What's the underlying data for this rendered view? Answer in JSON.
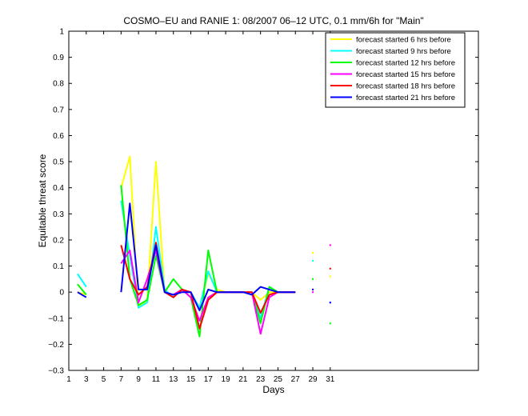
{
  "chart_data": {
    "type": "line",
    "title": "COSMO–EU and RANIE 1: 08/2007 06–12 UTC, 0.1 mm/6h for \"Main\"",
    "xlabel": "Days",
    "ylabel": "Equitable threat score",
    "xlim": [
      1,
      48
    ],
    "ylim": [
      -0.3,
      1
    ],
    "xticks": [
      1,
      3,
      5,
      7,
      9,
      11,
      13,
      15,
      17,
      19,
      21,
      23,
      25,
      27,
      29,
      31
    ],
    "yticks": [
      -0.3,
      -0.2,
      -0.1,
      0,
      0.1,
      0.2,
      0.3,
      0.4,
      0.5,
      0.6,
      0.7,
      0.8,
      0.9,
      1
    ],
    "ytick_labels": [
      "−0.3",
      "−0.2",
      "−0.1",
      "0",
      "0.1",
      "0.2",
      "0.3",
      "0.4",
      "0.5",
      "0.6",
      "0.7",
      "0.8",
      "0.9",
      "1"
    ],
    "legend_position": "top-right",
    "grid": false,
    "x": [
      1,
      2,
      3,
      4,
      5,
      6,
      7,
      8,
      9,
      10,
      11,
      12,
      13,
      14,
      15,
      16,
      17,
      18,
      19,
      20,
      21,
      22,
      23,
      24,
      25,
      26,
      27,
      28,
      29,
      30,
      31
    ],
    "series": [
      {
        "name": "forecast started 6 hrs before",
        "color": "#ffff00",
        "values": [
          null,
          0.0,
          -0.01,
          null,
          null,
          null,
          0.4,
          0.52,
          -0.06,
          -0.03,
          0.5,
          0.0,
          -0.01,
          0.01,
          0.0,
          -0.06,
          0.07,
          0.01,
          0.0,
          0.0,
          0.0,
          0.0,
          -0.03,
          0.0,
          0.0,
          0.0,
          0.0,
          null,
          0.15,
          null,
          0.06
        ]
      },
      {
        "name": "forecast started 9 hrs before",
        "color": "#00ffff",
        "values": [
          null,
          0.07,
          0.02,
          null,
          null,
          null,
          0.35,
          0.14,
          -0.06,
          -0.04,
          0.25,
          0.01,
          -0.02,
          0.01,
          0.0,
          -0.06,
          0.08,
          0.0,
          0.0,
          0.0,
          0.0,
          0.0,
          -0.1,
          0.02,
          0.0,
          0.0,
          0.0,
          null,
          0.12,
          null,
          -0.04
        ]
      },
      {
        "name": "forecast started 12 hrs before",
        "color": "#00ff00",
        "values": [
          null,
          0.03,
          -0.01,
          null,
          null,
          null,
          0.41,
          0.05,
          -0.05,
          -0.03,
          0.14,
          0.0,
          0.05,
          0.01,
          -0.02,
          -0.17,
          0.16,
          0.0,
          0.0,
          0.0,
          0.0,
          0.0,
          -0.12,
          0.02,
          0.0,
          0.0,
          0.0,
          null,
          0.05,
          null,
          -0.12
        ]
      },
      {
        "name": "forecast started 15 hrs before",
        "color": "#ff00ff",
        "values": [
          null,
          null,
          null,
          null,
          null,
          null,
          0.11,
          0.16,
          -0.04,
          0.05,
          0.16,
          0.0,
          -0.01,
          0.01,
          -0.02,
          -0.11,
          -0.02,
          0.0,
          0.0,
          0.0,
          0.0,
          0.0,
          -0.16,
          -0.02,
          0.0,
          0.0,
          0.0,
          null,
          0.0,
          null,
          0.18
        ]
      },
      {
        "name": "forecast started 18 hrs before",
        "color": "#ff0000",
        "values": [
          null,
          null,
          null,
          null,
          null,
          null,
          0.18,
          0.05,
          -0.01,
          0.02,
          0.19,
          0.0,
          -0.02,
          0.01,
          0.0,
          -0.14,
          -0.03,
          0.0,
          0.0,
          0.0,
          0.0,
          0.0,
          -0.08,
          -0.01,
          0.0,
          0.0,
          0.0,
          null,
          0.01,
          null,
          0.09
        ]
      },
      {
        "name": "forecast started 21 hrs before",
        "color": "#0000ff",
        "values": [
          null,
          0.0,
          -0.02,
          null,
          null,
          null,
          0.0,
          0.34,
          0.01,
          0.01,
          0.18,
          0.0,
          -0.01,
          0.0,
          0.0,
          -0.07,
          0.01,
          0.0,
          0.0,
          0.0,
          0.0,
          -0.01,
          0.02,
          0.01,
          0.0,
          0.0,
          0.0,
          null,
          0.01,
          null,
          -0.04
        ]
      }
    ]
  }
}
